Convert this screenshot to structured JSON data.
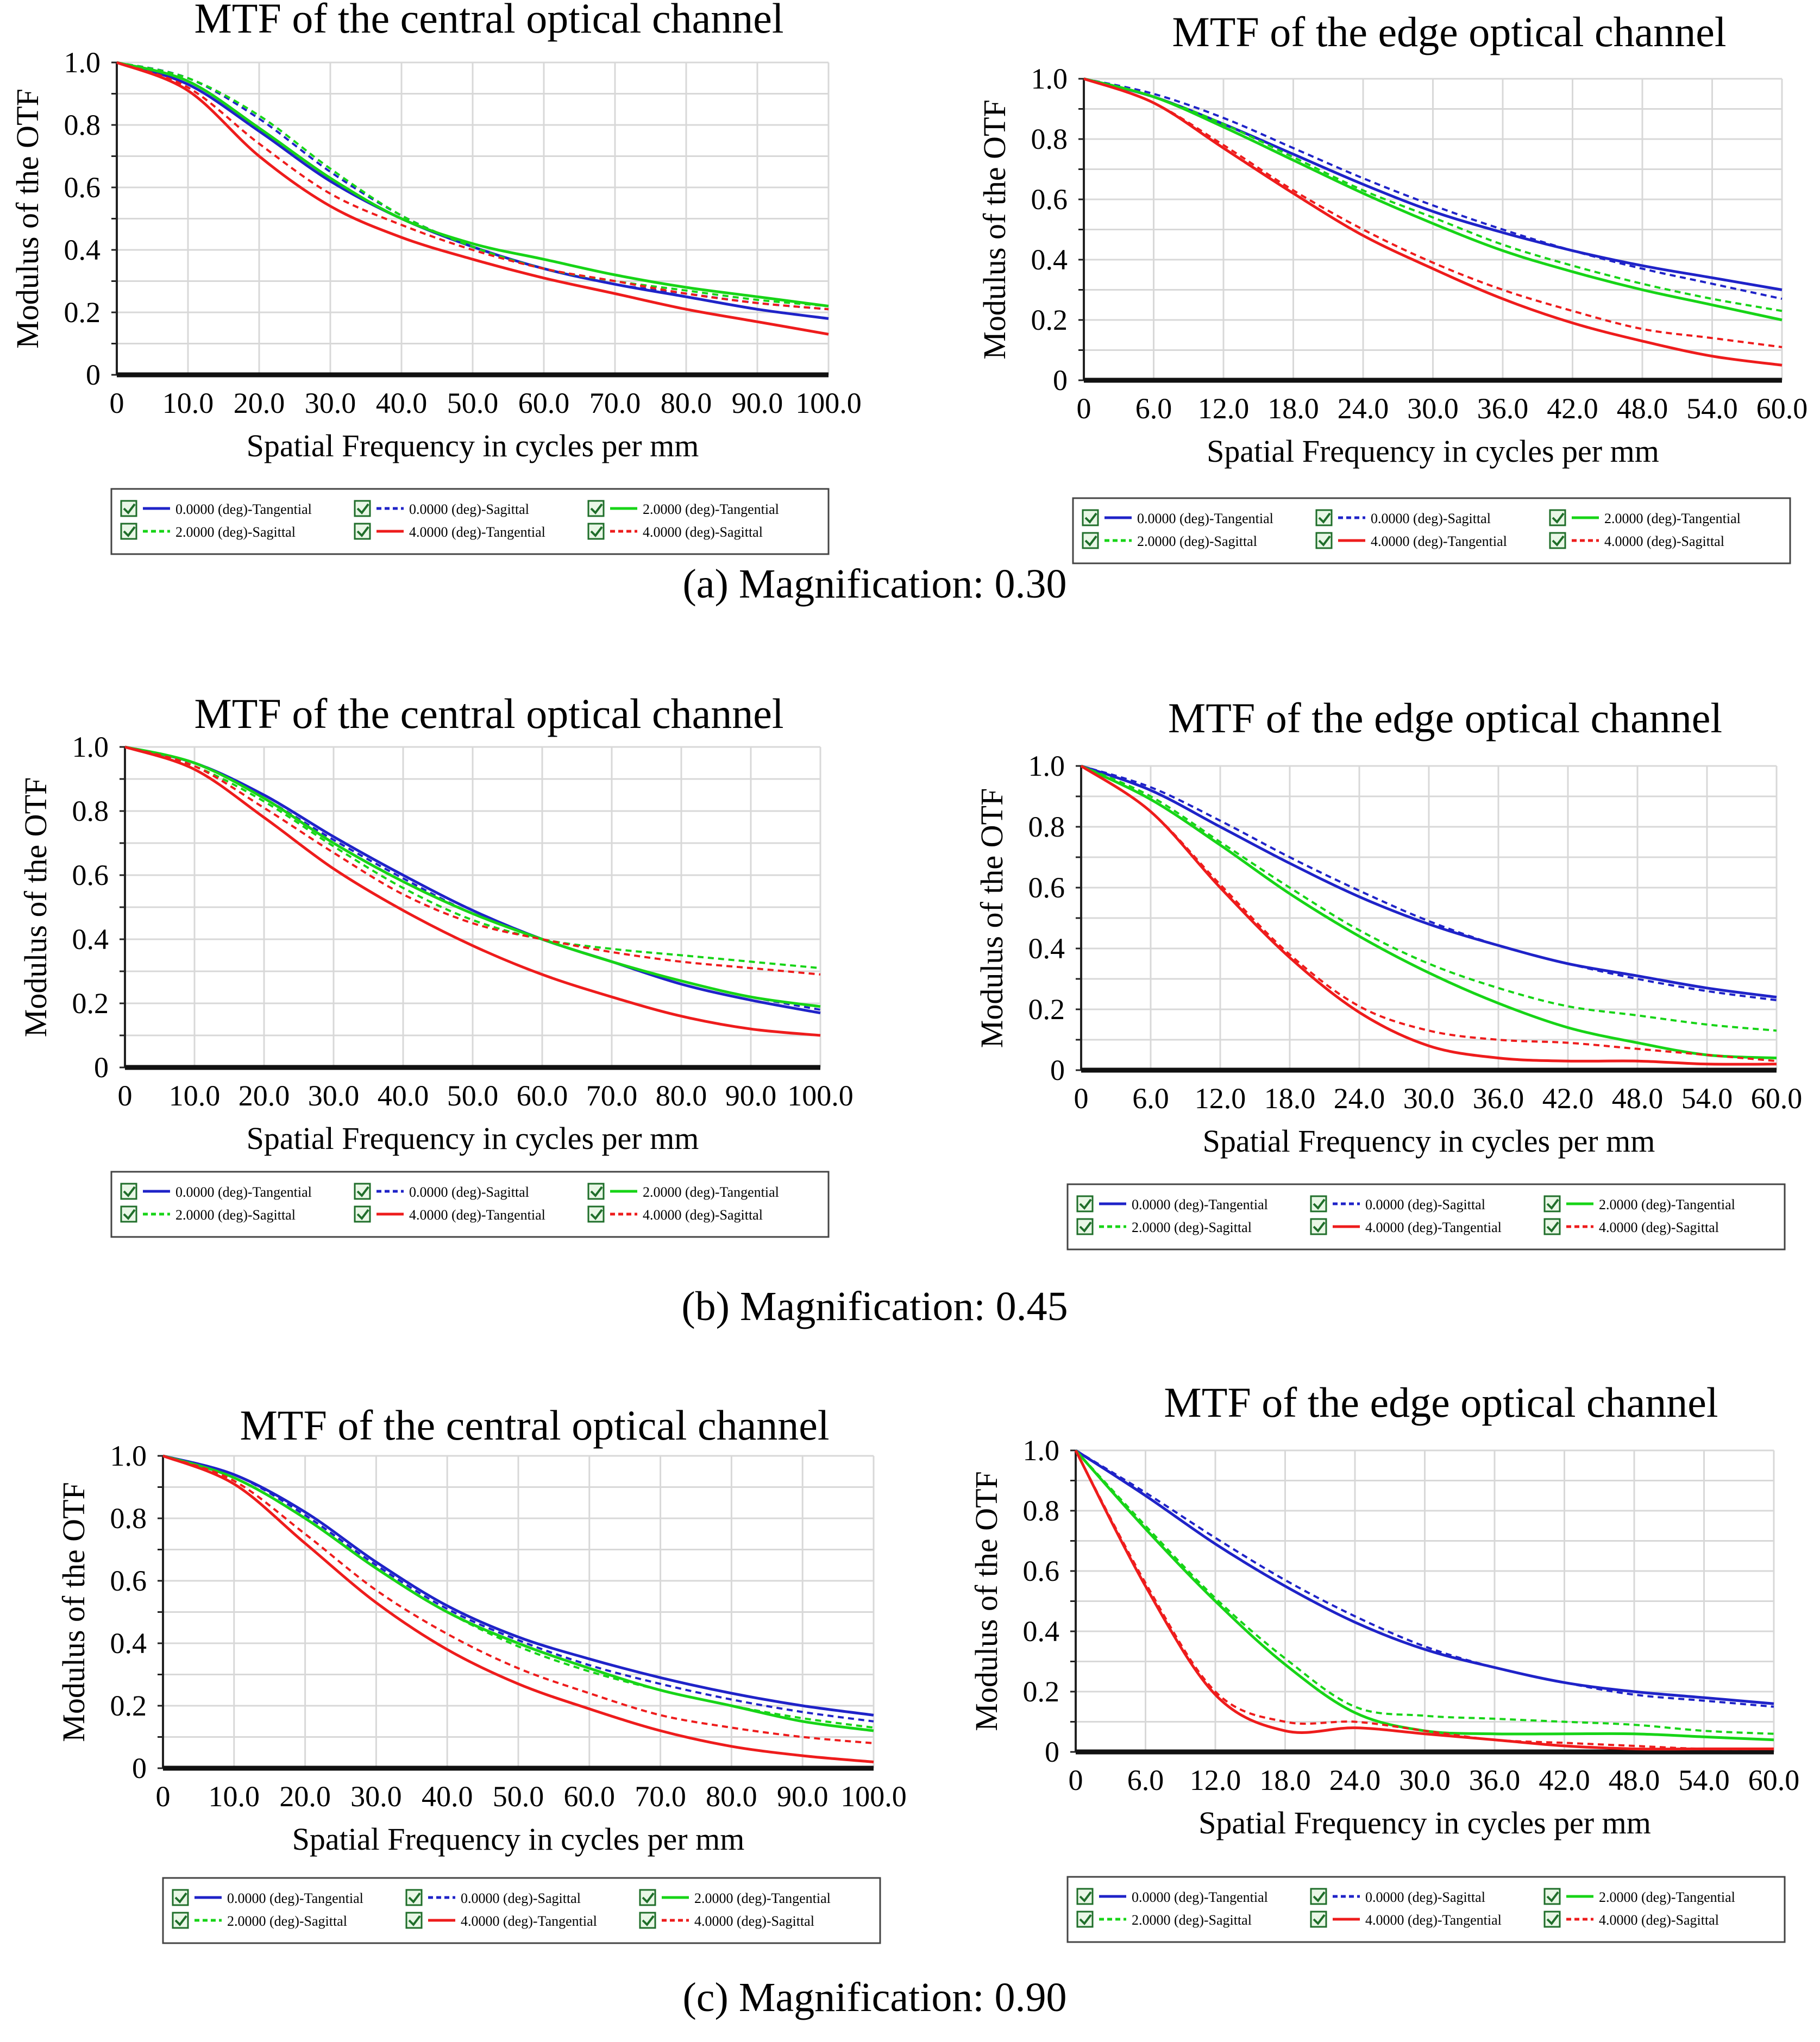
{
  "legend": [
    {
      "label": "0.0000 (deg)-Tangential",
      "color": "#1f23c8",
      "dash": false
    },
    {
      "label": "0.0000 (deg)-Sagittal",
      "color": "#1f23c8",
      "dash": true
    },
    {
      "label": "2.0000 (deg)-Tangential",
      "color": "#17d417",
      "dash": false
    },
    {
      "label": "2.0000 (deg)-Sagittal",
      "color": "#17d417",
      "dash": true
    },
    {
      "label": "4.0000 (deg)-Tangential",
      "color": "#ee1c1c",
      "dash": false
    },
    {
      "label": "4.0000 (deg)-Sagittal",
      "color": "#ee1c1c",
      "dash": true
    }
  ],
  "captions": [
    "(a) Magnification: 0.30",
    "(b) Magnification: 0.45",
    "(c) Magnification: 0.90"
  ],
  "chart_data": [
    {
      "type": "line",
      "row": 0,
      "side": "left",
      "title": "MTF of the central optical channel",
      "xlabel": "Spatial Frequency in cycles per mm",
      "ylabel": "Modulus of the OTF",
      "xlim": [
        0,
        100
      ],
      "ylim": [
        0,
        1.0
      ],
      "xticks": [
        "0",
        "10.0",
        "20.0",
        "30.0",
        "40.0",
        "50.0",
        "60.0",
        "70.0",
        "80.0",
        "90.0",
        "100.0"
      ],
      "yticks": [
        "0",
        "0.2",
        "0.4",
        "0.6",
        "0.8",
        "1.0"
      ],
      "x": [
        0,
        10,
        20,
        30,
        40,
        50,
        60,
        70,
        80,
        90,
        100
      ],
      "series": [
        {
          "name": "0.0000 (deg)-Tangential",
          "values": [
            1.0,
            0.93,
            0.78,
            0.62,
            0.5,
            0.41,
            0.34,
            0.29,
            0.25,
            0.21,
            0.18
          ]
        },
        {
          "name": "0.0000 (deg)-Sagittal",
          "values": [
            1.0,
            0.95,
            0.82,
            0.65,
            0.51,
            0.41,
            0.34,
            0.29,
            0.26,
            0.23,
            0.21
          ]
        },
        {
          "name": "2.0000 (deg)-Tangential",
          "values": [
            1.0,
            0.94,
            0.79,
            0.63,
            0.5,
            0.42,
            0.37,
            0.32,
            0.28,
            0.25,
            0.22
          ]
        },
        {
          "name": "2.0000 (deg)-Sagittal",
          "values": [
            1.0,
            0.95,
            0.83,
            0.66,
            0.51,
            0.41,
            0.34,
            0.3,
            0.27,
            0.24,
            0.22
          ]
        },
        {
          "name": "4.0000 (deg)-Tangential",
          "values": [
            1.0,
            0.91,
            0.7,
            0.54,
            0.44,
            0.37,
            0.31,
            0.26,
            0.21,
            0.17,
            0.13
          ]
        },
        {
          "name": "4.0000 (deg)-Sagittal",
          "values": [
            1.0,
            0.92,
            0.74,
            0.58,
            0.48,
            0.4,
            0.34,
            0.3,
            0.26,
            0.23,
            0.21
          ]
        }
      ]
    },
    {
      "type": "line",
      "row": 0,
      "side": "right",
      "title": "MTF of the edge optical channel",
      "xlabel": "Spatial Frequency in cycles per mm",
      "ylabel": "Modulus of the OTF",
      "xlim": [
        0,
        60
      ],
      "ylim": [
        0,
        1.0
      ],
      "xticks": [
        "0",
        "6.0",
        "12.0",
        "18.0",
        "24.0",
        "30.0",
        "36.0",
        "42.0",
        "48.0",
        "54.0",
        "60.0"
      ],
      "yticks": [
        "0",
        "0.2",
        "0.4",
        "0.6",
        "0.8",
        "1.0"
      ],
      "x": [
        0,
        6,
        12,
        18,
        24,
        30,
        36,
        42,
        48,
        54,
        60
      ],
      "series": [
        {
          "name": "0.0000 (deg)-Tangential",
          "values": [
            1.0,
            0.94,
            0.85,
            0.75,
            0.65,
            0.56,
            0.49,
            0.43,
            0.38,
            0.34,
            0.3
          ]
        },
        {
          "name": "0.0000 (deg)-Sagittal",
          "values": [
            1.0,
            0.95,
            0.87,
            0.77,
            0.67,
            0.58,
            0.5,
            0.43,
            0.37,
            0.32,
            0.27
          ]
        },
        {
          "name": "2.0000 (deg)-Tangential",
          "values": [
            1.0,
            0.94,
            0.84,
            0.73,
            0.62,
            0.52,
            0.43,
            0.36,
            0.3,
            0.25,
            0.2
          ]
        },
        {
          "name": "2.0000 (deg)-Sagittal",
          "values": [
            1.0,
            0.94,
            0.85,
            0.74,
            0.63,
            0.54,
            0.45,
            0.38,
            0.32,
            0.27,
            0.23
          ]
        },
        {
          "name": "4.0000 (deg)-Tangential",
          "values": [
            1.0,
            0.92,
            0.77,
            0.62,
            0.48,
            0.37,
            0.27,
            0.19,
            0.13,
            0.08,
            0.05
          ]
        },
        {
          "name": "4.0000 (deg)-Sagittal",
          "values": [
            1.0,
            0.92,
            0.78,
            0.63,
            0.5,
            0.39,
            0.3,
            0.23,
            0.17,
            0.14,
            0.11
          ]
        }
      ]
    },
    {
      "type": "line",
      "row": 1,
      "side": "left",
      "title": "MTF of the central optical channel",
      "xlabel": "Spatial Frequency in cycles per mm",
      "ylabel": "Modulus of the OTF",
      "xlim": [
        0,
        100
      ],
      "ylim": [
        0,
        1.0
      ],
      "xticks": [
        "0",
        "10.0",
        "20.0",
        "30.0",
        "40.0",
        "50.0",
        "60.0",
        "70.0",
        "80.0",
        "90.0",
        "100.0"
      ],
      "yticks": [
        "0",
        "0.2",
        "0.4",
        "0.6",
        "0.8",
        "1.0"
      ],
      "x": [
        0,
        10,
        20,
        30,
        40,
        50,
        60,
        70,
        80,
        90,
        100
      ],
      "series": [
        {
          "name": "0.0000 (deg)-Tangential",
          "values": [
            1.0,
            0.95,
            0.85,
            0.72,
            0.6,
            0.49,
            0.4,
            0.33,
            0.26,
            0.21,
            0.17
          ]
        },
        {
          "name": "0.0000 (deg)-Sagittal",
          "values": [
            1.0,
            0.95,
            0.84,
            0.71,
            0.59,
            0.48,
            0.4,
            0.33,
            0.27,
            0.22,
            0.18
          ]
        },
        {
          "name": "2.0000 (deg)-Tangential",
          "values": [
            1.0,
            0.95,
            0.84,
            0.7,
            0.58,
            0.48,
            0.4,
            0.33,
            0.27,
            0.22,
            0.19
          ]
        },
        {
          "name": "2.0000 (deg)-Sagittal",
          "values": [
            1.0,
            0.94,
            0.83,
            0.69,
            0.56,
            0.46,
            0.4,
            0.37,
            0.35,
            0.33,
            0.31
          ]
        },
        {
          "name": "4.0000 (deg)-Tangential",
          "values": [
            1.0,
            0.93,
            0.78,
            0.62,
            0.49,
            0.38,
            0.29,
            0.22,
            0.16,
            0.12,
            0.1
          ]
        },
        {
          "name": "4.0000 (deg)-Sagittal",
          "values": [
            1.0,
            0.94,
            0.81,
            0.67,
            0.54,
            0.45,
            0.4,
            0.36,
            0.33,
            0.31,
            0.29
          ]
        }
      ]
    },
    {
      "type": "line",
      "row": 1,
      "side": "right",
      "title": "MTF of the edge optical channel",
      "xlabel": "Spatial Frequency in cycles per mm",
      "ylabel": "Modulus of the OTF",
      "xlim": [
        0,
        60
      ],
      "ylim": [
        0,
        1.0
      ],
      "xticks": [
        "0",
        "6.0",
        "12.0",
        "18.0",
        "24.0",
        "30.0",
        "36.0",
        "42.0",
        "48.0",
        "54.0",
        "60.0"
      ],
      "yticks": [
        "0",
        "0.2",
        "0.4",
        "0.6",
        "0.8",
        "1.0"
      ],
      "x": [
        0,
        6,
        12,
        18,
        24,
        30,
        36,
        42,
        48,
        54,
        60
      ],
      "series": [
        {
          "name": "0.0000 (deg)-Tangential",
          "values": [
            1.0,
            0.92,
            0.8,
            0.68,
            0.57,
            0.48,
            0.41,
            0.35,
            0.31,
            0.27,
            0.24
          ]
        },
        {
          "name": "0.0000 (deg)-Sagittal",
          "values": [
            1.0,
            0.93,
            0.82,
            0.7,
            0.59,
            0.49,
            0.41,
            0.35,
            0.3,
            0.26,
            0.23
          ]
        },
        {
          "name": "2.0000 (deg)-Tangential",
          "values": [
            1.0,
            0.89,
            0.74,
            0.58,
            0.44,
            0.32,
            0.22,
            0.14,
            0.09,
            0.05,
            0.04
          ]
        },
        {
          "name": "2.0000 (deg)-Sagittal",
          "values": [
            1.0,
            0.9,
            0.75,
            0.6,
            0.46,
            0.35,
            0.27,
            0.21,
            0.18,
            0.15,
            0.13
          ]
        },
        {
          "name": "4.0000 (deg)-Tangential",
          "values": [
            1.0,
            0.85,
            0.6,
            0.37,
            0.19,
            0.08,
            0.04,
            0.03,
            0.03,
            0.02,
            0.02
          ]
        },
        {
          "name": "4.0000 (deg)-Sagittal",
          "values": [
            1.0,
            0.85,
            0.61,
            0.38,
            0.21,
            0.13,
            0.1,
            0.09,
            0.07,
            0.05,
            0.03
          ]
        }
      ]
    },
    {
      "type": "line",
      "row": 2,
      "side": "left",
      "title": "MTF of the central optical channel",
      "xlabel": "Spatial Frequency in cycles per mm",
      "ylabel": "Modulus of the OTF",
      "xlim": [
        0,
        100
      ],
      "ylim": [
        0,
        1.0
      ],
      "xticks": [
        "0",
        "10.0",
        "20.0",
        "30.0",
        "40.0",
        "50.0",
        "60.0",
        "70.0",
        "80.0",
        "90.0",
        "100.0"
      ],
      "yticks": [
        "0",
        "0.2",
        "0.4",
        "0.6",
        "0.8",
        "1.0"
      ],
      "x": [
        0,
        10,
        20,
        30,
        40,
        50,
        60,
        70,
        80,
        90,
        100
      ],
      "series": [
        {
          "name": "0.0000 (deg)-Tangential",
          "values": [
            1.0,
            0.94,
            0.82,
            0.66,
            0.52,
            0.42,
            0.35,
            0.29,
            0.24,
            0.2,
            0.17
          ]
        },
        {
          "name": "0.0000 (deg)-Sagittal",
          "values": [
            1.0,
            0.94,
            0.81,
            0.65,
            0.51,
            0.41,
            0.33,
            0.27,
            0.22,
            0.18,
            0.15
          ]
        },
        {
          "name": "2.0000 (deg)-Tangential",
          "values": [
            1.0,
            0.93,
            0.8,
            0.64,
            0.5,
            0.4,
            0.32,
            0.25,
            0.2,
            0.15,
            0.12
          ]
        },
        {
          "name": "2.0000 (deg)-Sagittal",
          "values": [
            1.0,
            0.93,
            0.8,
            0.64,
            0.5,
            0.39,
            0.31,
            0.25,
            0.2,
            0.16,
            0.13
          ]
        },
        {
          "name": "4.0000 (deg)-Tangential",
          "values": [
            1.0,
            0.91,
            0.72,
            0.53,
            0.38,
            0.27,
            0.19,
            0.12,
            0.07,
            0.04,
            0.02
          ]
        },
        {
          "name": "4.0000 (deg)-Sagittal",
          "values": [
            1.0,
            0.92,
            0.75,
            0.57,
            0.43,
            0.32,
            0.24,
            0.17,
            0.13,
            0.1,
            0.08
          ]
        }
      ]
    },
    {
      "type": "line",
      "row": 2,
      "side": "right",
      "title": "MTF of the edge optical channel",
      "xlabel": "Spatial Frequency in cycles per mm",
      "ylabel": "Modulus of the OTF",
      "xlim": [
        0,
        60
      ],
      "ylim": [
        0,
        1.0
      ],
      "xticks": [
        "0",
        "6.0",
        "12.0",
        "18.0",
        "24.0",
        "30.0",
        "36.0",
        "42.0",
        "48.0",
        "54.0",
        "60.0"
      ],
      "yticks": [
        "0",
        "0.2",
        "0.4",
        "0.6",
        "0.8",
        "1.0"
      ],
      "x": [
        0,
        6,
        12,
        18,
        24,
        30,
        36,
        42,
        48,
        54,
        60
      ],
      "series": [
        {
          "name": "0.0000 (deg)-Tangential",
          "values": [
            1.0,
            0.85,
            0.69,
            0.55,
            0.43,
            0.34,
            0.28,
            0.23,
            0.2,
            0.18,
            0.16
          ]
        },
        {
          "name": "0.0000 (deg)-Sagittal",
          "values": [
            1.0,
            0.86,
            0.71,
            0.57,
            0.45,
            0.35,
            0.28,
            0.23,
            0.19,
            0.17,
            0.15
          ]
        },
        {
          "name": "2.0000 (deg)-Tangential",
          "values": [
            1.0,
            0.74,
            0.5,
            0.29,
            0.13,
            0.07,
            0.06,
            0.06,
            0.06,
            0.05,
            0.04
          ]
        },
        {
          "name": "2.0000 (deg)-Sagittal",
          "values": [
            1.0,
            0.75,
            0.51,
            0.31,
            0.15,
            0.12,
            0.11,
            0.1,
            0.09,
            0.07,
            0.06
          ]
        },
        {
          "name": "4.0000 (deg)-Tangential",
          "values": [
            1.0,
            0.55,
            0.19,
            0.07,
            0.08,
            0.06,
            0.04,
            0.02,
            0.01,
            0.01,
            0.01
          ]
        },
        {
          "name": "4.0000 (deg)-Sagittal",
          "values": [
            1.0,
            0.56,
            0.2,
            0.1,
            0.1,
            0.07,
            0.04,
            0.03,
            0.02,
            0.01,
            0.01
          ]
        }
      ]
    }
  ]
}
